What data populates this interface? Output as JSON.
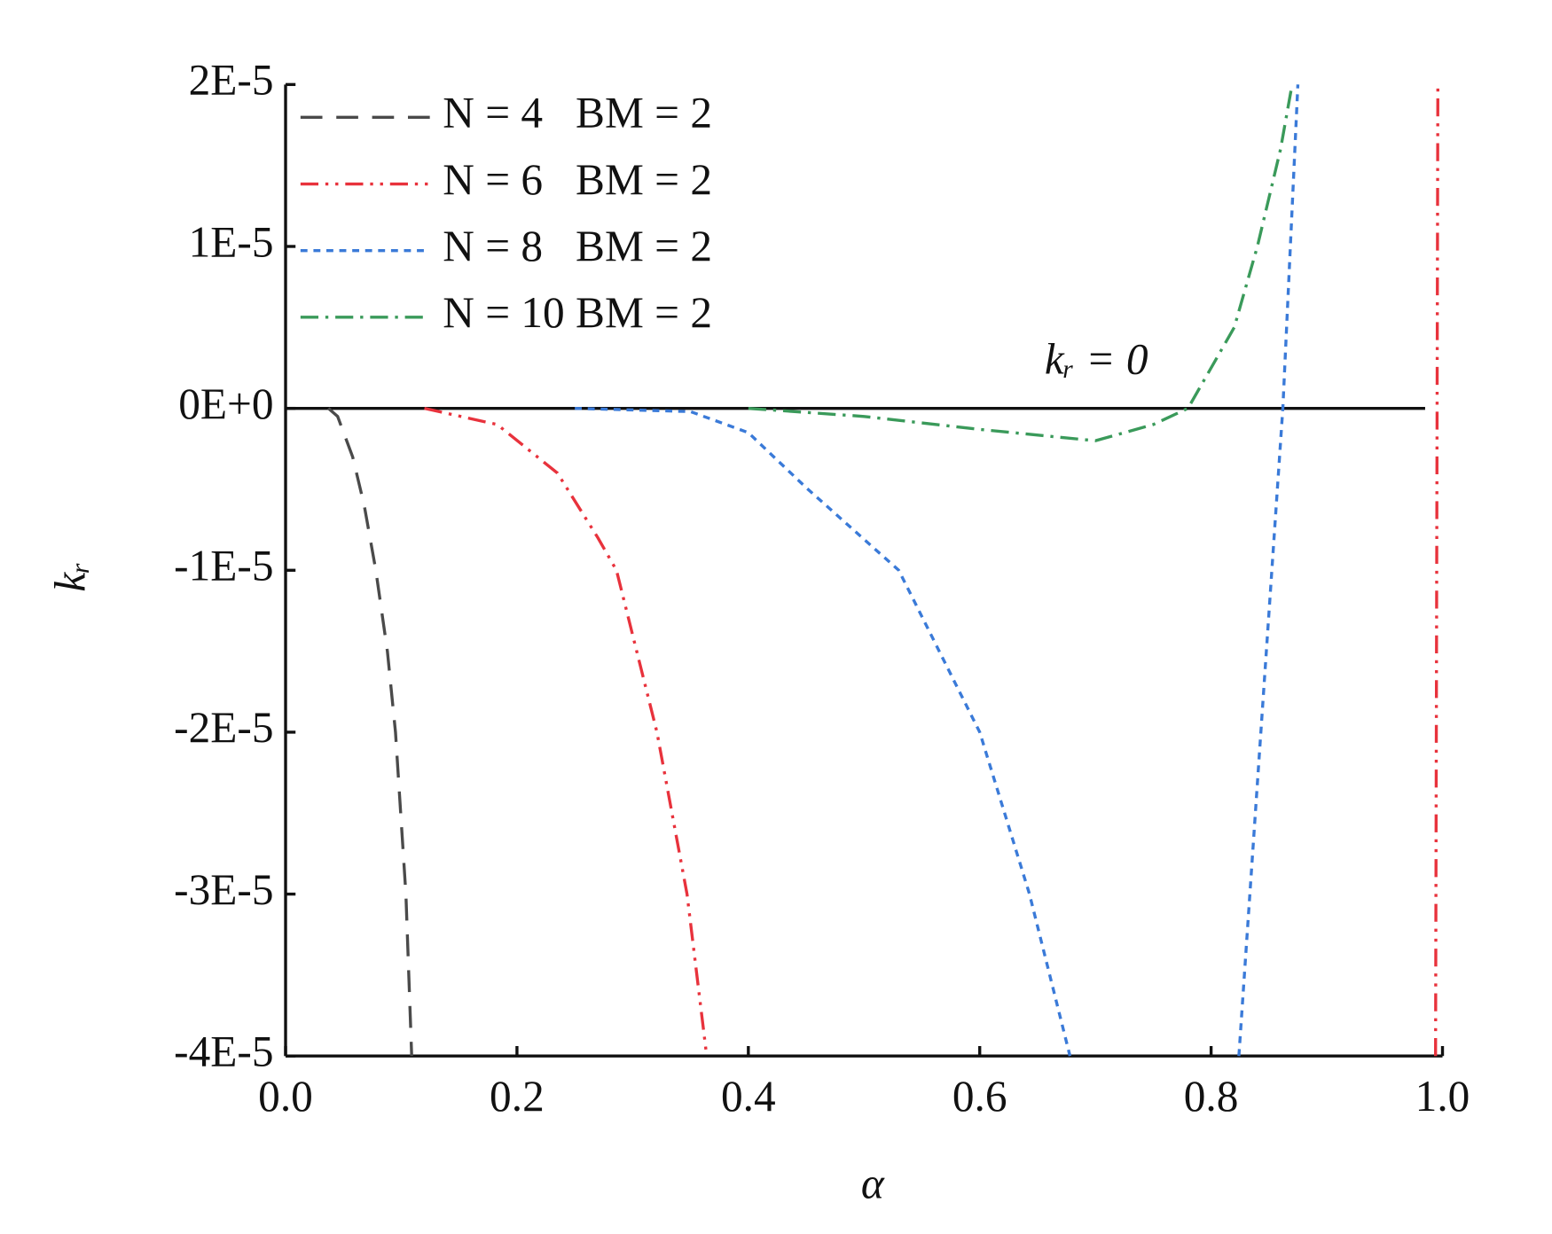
{
  "chart_data": {
    "type": "line",
    "xlabel": "α",
    "ylabel": "kᵣ",
    "xlim": [
      0,
      1
    ],
    "ylim": [
      -4e-05,
      2e-05
    ],
    "xticks": [
      {
        "value": 0,
        "label": "0.0"
      },
      0.2,
      0.4,
      0.6,
      0.8,
      {
        "value": 1,
        "label": "1.0"
      }
    ],
    "yticks": [
      {
        "value": 2e-05,
        "label": "2E-5"
      },
      {
        "value": 1e-05,
        "label": "1E-5"
      },
      {
        "value": 0,
        "label": "0E+0"
      },
      {
        "value": -1e-05,
        "label": "-1E-5"
      },
      {
        "value": -2e-05,
        "label": "-2E-5"
      },
      {
        "value": -3e-05,
        "label": "-3E-5"
      },
      {
        "value": -4e-05,
        "label": "-4E-5"
      }
    ],
    "legend": "upper left",
    "reference_line": {
      "y": 0,
      "label": "kᵣ = 0"
    },
    "series": [
      {
        "name": "N = 4   BM = 2",
        "color": "#4a4a4a",
        "linestyle": "dashed",
        "x": [
          0.037,
          0.045,
          0.058,
          0.068,
          0.078,
          0.088,
          0.095,
          0.104,
          0.109
        ],
        "values": [
          0,
          -5e-07,
          -3e-06,
          -6e-06,
          -1e-05,
          -1.5e-05,
          -2e-05,
          -3e-05,
          -4e-05
        ]
      },
      {
        "name": "N = 6   BM = 2",
        "color": "#e8323c",
        "linestyle": "dash-dot-dot",
        "x": [
          0.12,
          0.183,
          0.235,
          0.27,
          0.286,
          0.321,
          0.347,
          0.364,
          0.6,
          0.994,
          0.996
        ],
        "values": [
          0,
          -1e-06,
          -4e-06,
          -8e-06,
          -1e-05,
          -2e-05,
          -3e-05,
          -4e-05,
          null,
          -4e-05,
          2e-05
        ]
      },
      {
        "name": "N = 8   BM = 2",
        "color": "#3a7ad8",
        "linestyle": "dotted",
        "x": [
          0.25,
          0.35,
          0.4,
          0.45,
          0.53,
          0.6,
          0.643,
          0.678,
          0.75,
          0.824,
          0.862,
          0.875
        ],
        "values": [
          0,
          -2e-07,
          -1.5e-06,
          -4.9e-06,
          -1e-05,
          -2e-05,
          -3e-05,
          -4e-05,
          null,
          -4e-05,
          0,
          2e-05
        ]
      },
      {
        "name": "N = 10 BM = 2",
        "color": "#3a9a5a",
        "linestyle": "dash-dot",
        "x": [
          0.4,
          0.5,
          0.6,
          0.7,
          0.75,
          0.78,
          0.82,
          0.84,
          0.86,
          0.87
        ],
        "values": [
          0,
          -5e-07,
          -1.3e-06,
          -2e-06,
          -1e-06,
          0,
          5e-06,
          1e-05,
          1.6e-05,
          2e-05
        ]
      }
    ]
  }
}
